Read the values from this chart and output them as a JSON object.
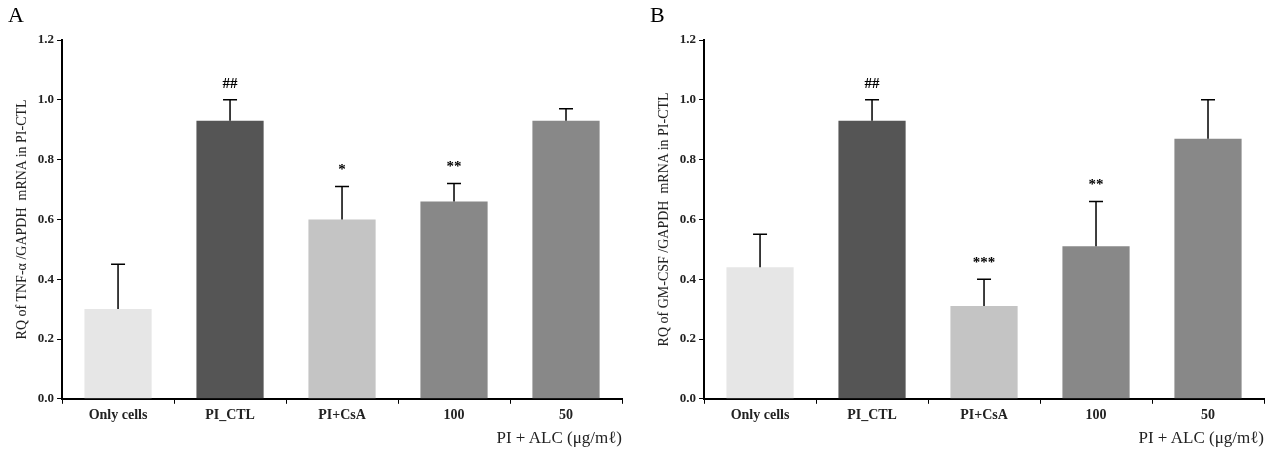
{
  "chart_data": [
    {
      "type": "bar",
      "title": "A",
      "ylabel": "RQ of TNF-α /GAPDH  mRNA in PI-CTL",
      "xlabel": "PI + ALC (μg/mℓ)",
      "categories": [
        "Only cells",
        "PI_CTL",
        "PI+CsA",
        "100",
        "50"
      ],
      "values": [
        0.3,
        0.93,
        0.6,
        0.66,
        0.93
      ],
      "errors": [
        0.15,
        0.07,
        0.11,
        0.06,
        0.04
      ],
      "colors": [
        "#e6e6e6",
        "#555555",
        "#c4c4c4",
        "#888888",
        "#888888"
      ],
      "ylim": [
        0,
        1.2
      ],
      "yticks": [
        {
          "value": 0,
          "label": "0.0"
        },
        {
          "value": 0.2,
          "label": "0.2"
        },
        {
          "value": 0.4,
          "label": "0.4"
        },
        {
          "value": 0.6,
          "label": "0.6"
        },
        {
          "value": 0.8,
          "label": "0.8"
        },
        {
          "value": 1.0,
          "label": "1.0"
        },
        {
          "value": 1.2,
          "label": "1.2"
        }
      ],
      "annotations": [
        "##",
        "*",
        "**"
      ],
      "grid": false,
      "legend": false
    },
    {
      "type": "bar",
      "title": "B",
      "ylabel": "RQ of GM-CSF /GAPDH  mRNA in PI-CTL",
      "xlabel": "PI + ALC (μg/mℓ)",
      "categories": [
        "Only cells",
        "PI_CTL",
        "PI+CsA",
        "100",
        "50"
      ],
      "values": [
        0.44,
        0.93,
        0.31,
        0.51,
        0.87
      ],
      "errors": [
        0.11,
        0.07,
        0.09,
        0.15,
        0.13
      ],
      "colors": [
        "#e6e6e6",
        "#555555",
        "#c4c4c4",
        "#888888",
        "#888888"
      ],
      "ylim": [
        0,
        1.2
      ],
      "yticks": [
        {
          "value": 0,
          "label": "0.0"
        },
        {
          "value": 0.2,
          "label": "0.2"
        },
        {
          "value": 0.4,
          "label": "0.4"
        },
        {
          "value": 0.6,
          "label": "0.6"
        },
        {
          "value": 0.8,
          "label": "0.8"
        },
        {
          "value": 1.0,
          "label": "1.0"
        },
        {
          "value": 1.2,
          "label": "1.2"
        }
      ],
      "annotations": [
        "##",
        "***",
        "**"
      ],
      "grid": false,
      "legend": false
    }
  ]
}
